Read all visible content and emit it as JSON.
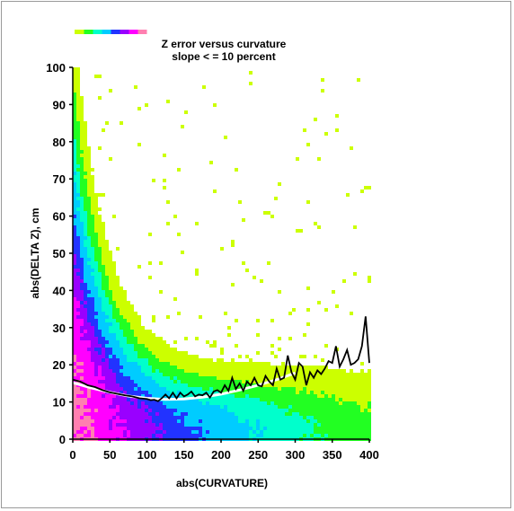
{
  "chart_data": {
    "type": "heatmap",
    "title_line1": "Z error versus curvature",
    "title_line2": "slope < = 10 percent",
    "xlabel": "abs(CURVATURE)",
    "ylabel": "abs(DELTA Z), cm",
    "xlim": [
      0,
      400
    ],
    "ylim": [
      0,
      100
    ],
    "x_ticks": [
      "0",
      "50",
      "100",
      "150",
      "200",
      "250",
      "300",
      "350",
      "400"
    ],
    "y_ticks": [
      "0",
      "10",
      "20",
      "30",
      "40",
      "50",
      "60",
      "70",
      "80",
      "90",
      "100"
    ],
    "grid": false,
    "colorscale": [
      "#ff7fb0",
      "#ff00ff",
      "#9900ff",
      "#2233ff",
      "#00ccff",
      "#00ffcc",
      "#22ff22",
      "#ccff00"
    ],
    "mean_curve": {
      "name": "",
      "color": "#000000",
      "x": [
        0,
        10,
        20,
        30,
        40,
        50,
        60,
        70,
        80,
        90,
        100,
        105,
        110,
        115,
        120,
        125,
        130,
        135,
        140,
        145,
        150,
        155,
        160,
        165,
        170,
        175,
        180,
        185,
        190,
        195,
        200,
        205,
        210,
        215,
        220,
        225,
        230,
        235,
        240,
        245,
        250,
        255,
        260,
        265,
        270,
        275,
        280,
        285,
        290,
        295,
        300,
        305,
        310,
        315,
        320,
        325,
        330,
        335,
        340,
        345,
        350,
        355,
        360,
        365,
        370,
        375,
        380,
        385,
        390,
        395,
        400
      ],
      "y": [
        16,
        15.5,
        14.5,
        14,
        13.2,
        12.6,
        12.2,
        11.8,
        11.5,
        11,
        10.8,
        10.5,
        10.6,
        10.2,
        11,
        12,
        11,
        12.5,
        11,
        12.5,
        11.5,
        12,
        12.8,
        11.5,
        12,
        11.8,
        12.5,
        11.2,
        12.8,
        13.2,
        12.5,
        14.5,
        13,
        16.5,
        13.5,
        15,
        13,
        15.5,
        14.5,
        16.5,
        14.5,
        14.2,
        17,
        15.5,
        14.5,
        19,
        16,
        16.5,
        22.5,
        18,
        16,
        20.5,
        19.5,
        14.5,
        18,
        16.5,
        18.5,
        17.5,
        19,
        21,
        20.5,
        25,
        19.5,
        21.5,
        24,
        20,
        20.5,
        21.5,
        25,
        33,
        20.5
      ]
    },
    "fit_curve": {
      "name": "",
      "color": "#ffffff",
      "x": [
        0,
        25,
        50,
        75,
        100,
        125,
        150,
        175,
        200,
        225,
        250,
        275,
        300
      ],
      "y": [
        15.2,
        13.8,
        12.6,
        11.6,
        11,
        10.7,
        10.8,
        11.3,
        12.1,
        13.2,
        14.5,
        16,
        17.8
      ]
    }
  }
}
